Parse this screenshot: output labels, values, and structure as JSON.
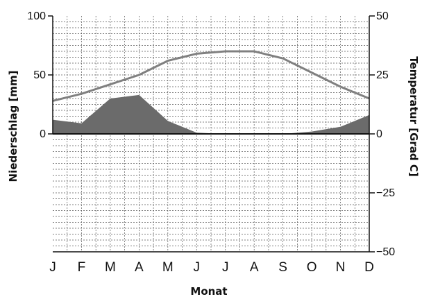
{
  "chart_data": {
    "type": "climate-diagram",
    "xlabel": "Monat",
    "ylabel_left": "Niederschlag [mm]",
    "ylabel_right": "Temperatur [Grad C]",
    "categories": [
      "J",
      "F",
      "M",
      "A",
      "M",
      "J",
      "J",
      "A",
      "S",
      "O",
      "N",
      "D"
    ],
    "left_axis": {
      "range": [
        -100,
        100
      ],
      "ticks": [
        100,
        50,
        0
      ]
    },
    "right_axis": {
      "range": [
        -50,
        50
      ],
      "ticks": [
        50,
        25,
        0,
        -25,
        -50
      ]
    },
    "grid": true,
    "series": [
      {
        "kind": "area",
        "axis": "left",
        "color": "#6b6b6b",
        "values": [
          12,
          9,
          30,
          33,
          11,
          1,
          0,
          0,
          0,
          2,
          6,
          16
        ]
      },
      {
        "kind": "line",
        "axis": "right",
        "color": "#808080",
        "values": [
          14,
          17,
          21,
          25,
          31,
          34,
          35,
          35,
          32,
          26,
          20,
          15
        ]
      }
    ]
  }
}
